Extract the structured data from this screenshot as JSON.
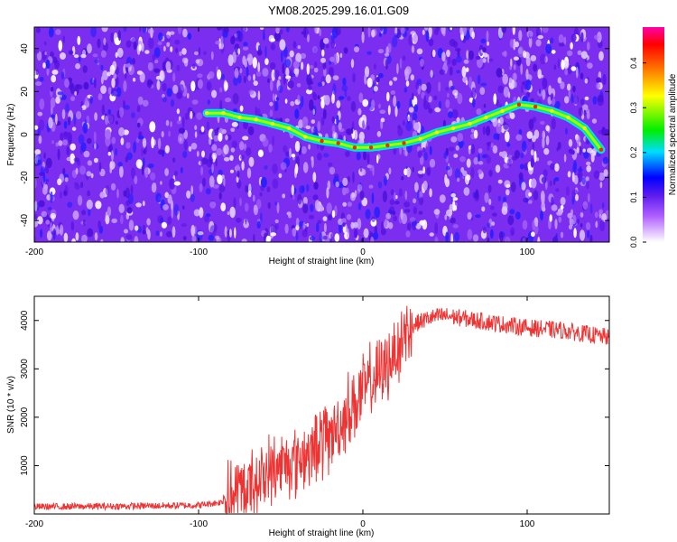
{
  "title": "YM08.2025.299.16.01.G09",
  "chart_data": [
    {
      "type": "heatmap",
      "xlabel": "Height of straight line (km)",
      "ylabel": "Frequency (Hz)",
      "xlim": [
        -200,
        150
      ],
      "ylim": [
        -50,
        50
      ],
      "xticks": [
        -200,
        -100,
        0,
        100
      ],
      "xtick_labels": [
        "-200",
        "-100",
        "0",
        "100"
      ],
      "yticks": [
        -40,
        -20,
        0,
        20,
        40
      ],
      "ytick_labels": [
        "-40",
        "-20",
        "0",
        "20",
        "40"
      ],
      "colorbar": {
        "label": "Normalized spectral amplitude",
        "range": [
          0,
          0.48
        ],
        "ticks": [
          0,
          0.1,
          0.2,
          0.3,
          0.4
        ],
        "tick_labels": [
          "0.0",
          "0.1",
          "0.2",
          "0.3",
          "0.4"
        ]
      },
      "signal_track": {
        "description": "bright curved signal ridge over noise background",
        "x": [
          -95,
          -85,
          -75,
          -65,
          -55,
          -45,
          -35,
          -25,
          -15,
          -5,
          5,
          15,
          25,
          35,
          45,
          55,
          65,
          75,
          85,
          95,
          105,
          115,
          125,
          135,
          145
        ],
        "y": [
          10,
          10,
          8,
          7,
          5,
          3,
          -1,
          -3,
          -4,
          -6,
          -6,
          -5,
          -4,
          -2,
          1,
          3,
          5,
          8,
          11,
          14,
          13,
          11,
          8,
          3,
          -7
        ]
      }
    },
    {
      "type": "line",
      "xlabel": "Height of straight line (km)",
      "ylabel": "SNR (10 * v/v)",
      "xlim": [
        -200,
        150
      ],
      "ylim": [
        0,
        4500
      ],
      "xticks": [
        -200,
        -100,
        0,
        100
      ],
      "xtick_labels": [
        "-200",
        "-100",
        "0",
        "100"
      ],
      "yticks": [
        1000,
        2000,
        3000,
        4000
      ],
      "ytick_labels": [
        "1000",
        "2000",
        "3000",
        "4000"
      ],
      "color": "#ee3333",
      "envelope": {
        "x": [
          -200,
          -150,
          -100,
          -85,
          -75,
          -65,
          -55,
          -45,
          -35,
          -25,
          -15,
          -10,
          -5,
          0,
          5,
          10,
          15,
          20,
          25,
          30,
          40,
          50,
          60,
          80,
          100,
          120,
          140,
          150
        ],
        "y": [
          150,
          160,
          180,
          250,
          400,
          700,
          900,
          1100,
          1200,
          1500,
          1800,
          2100,
          2300,
          2500,
          2700,
          2900,
          3100,
          3400,
          3700,
          3900,
          4050,
          4100,
          4050,
          3950,
          3850,
          3800,
          3700,
          3650
        ]
      }
    }
  ]
}
